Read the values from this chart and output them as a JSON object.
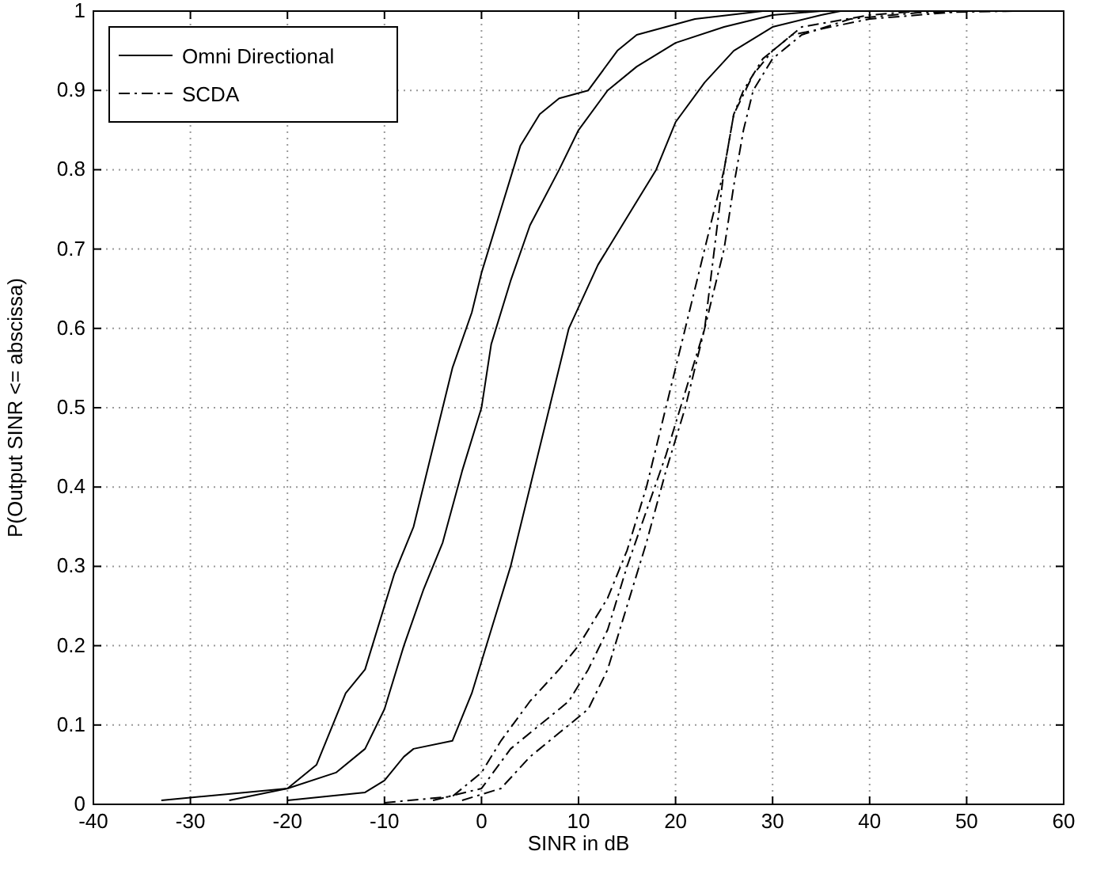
{
  "chart_data": {
    "type": "line",
    "xlabel": "SINR in dB",
    "ylabel": "P(Output SINR <= abscissa)",
    "xlim": [
      -40,
      60
    ],
    "xticks": [
      -40,
      -30,
      -20,
      -10,
      0,
      10,
      20,
      30,
      40,
      50,
      60
    ],
    "ylim": [
      0,
      1
    ],
    "yticks": [
      0,
      0.1,
      0.2,
      0.3,
      0.4,
      0.5,
      0.6,
      0.7,
      0.8,
      0.9,
      1
    ],
    "grid": true,
    "legend": "top left",
    "series": [
      {
        "name": "Omni Directional",
        "color": "#000000",
        "line_style": "solid",
        "x": [
          -33,
          -20,
          -17,
          -14,
          -12,
          -9,
          -7,
          -5,
          -3,
          -1,
          0,
          2,
          4,
          6,
          8,
          11,
          14,
          16,
          22,
          29
        ],
        "values": [
          0.005,
          0.02,
          0.05,
          0.14,
          0.17,
          0.29,
          0.35,
          0.45,
          0.55,
          0.62,
          0.67,
          0.75,
          0.83,
          0.87,
          0.89,
          0.9,
          0.95,
          0.97,
          0.99,
          1
        ]
      },
      {
        "color": "#000000",
        "line_style": "solid",
        "x": [
          -26,
          -20,
          -15,
          -12,
          -10,
          -8,
          -6,
          -4,
          -2,
          0,
          1,
          3,
          5,
          8,
          10,
          13,
          16,
          20,
          25,
          30,
          35
        ],
        "values": [
          0.005,
          0.02,
          0.04,
          0.07,
          0.12,
          0.2,
          0.27,
          0.33,
          0.42,
          0.5,
          0.58,
          0.66,
          0.73,
          0.8,
          0.85,
          0.9,
          0.93,
          0.96,
          0.98,
          0.995,
          1
        ]
      },
      {
        "color": "#000000",
        "line_style": "solid",
        "x": [
          -20,
          -12,
          -10,
          -8,
          -7,
          -3,
          -1,
          1,
          3,
          5,
          7,
          9,
          12,
          15,
          18,
          20,
          23,
          26,
          30,
          35,
          37
        ],
        "values": [
          0.005,
          0.015,
          0.03,
          0.06,
          0.07,
          0.08,
          0.14,
          0.22,
          0.3,
          0.4,
          0.5,
          0.6,
          0.68,
          0.74,
          0.8,
          0.86,
          0.91,
          0.95,
          0.98,
          0.995,
          1
        ]
      },
      {
        "name": "SCDA",
        "color": "#000000",
        "line_style": "dashed",
        "x": [
          -10,
          -3,
          0,
          2,
          5,
          8,
          10,
          13,
          15,
          17,
          19,
          21,
          23,
          25,
          26,
          28,
          30,
          33,
          40,
          45
        ],
        "values": [
          0.002,
          0.01,
          0.04,
          0.08,
          0.13,
          0.17,
          0.2,
          0.26,
          0.32,
          0.4,
          0.5,
          0.6,
          0.7,
          0.8,
          0.87,
          0.92,
          0.95,
          0.98,
          0.995,
          1
        ]
      },
      {
        "color": "#000000",
        "line_style": "dashed",
        "x": [
          -5,
          0,
          3,
          6,
          9,
          11,
          13,
          15,
          17,
          19,
          21,
          23,
          24,
          25,
          26,
          27,
          29,
          32,
          40,
          50
        ],
        "values": [
          0.005,
          0.02,
          0.07,
          0.1,
          0.13,
          0.17,
          0.22,
          0.3,
          0.37,
          0.44,
          0.52,
          0.6,
          0.7,
          0.8,
          0.87,
          0.9,
          0.94,
          0.97,
          0.99,
          1
        ]
      },
      {
        "color": "#000000",
        "line_style": "dashed",
        "x": [
          -2,
          2,
          5,
          8,
          11,
          13,
          15,
          17,
          19,
          21,
          23,
          25,
          26,
          27,
          28,
          30,
          33,
          38,
          45,
          55
        ],
        "values": [
          0.005,
          0.02,
          0.06,
          0.09,
          0.12,
          0.17,
          0.25,
          0.33,
          0.42,
          0.5,
          0.6,
          0.7,
          0.78,
          0.85,
          0.9,
          0.94,
          0.97,
          0.99,
          0.998,
          1
        ]
      }
    ]
  }
}
